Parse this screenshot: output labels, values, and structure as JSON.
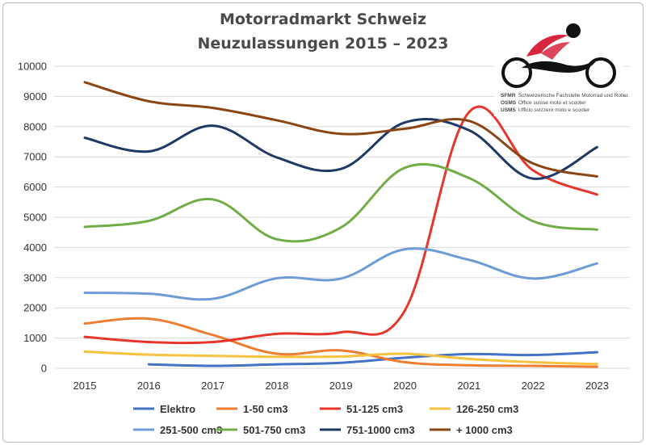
{
  "chart_data": {
    "type": "line",
    "title_lines": [
      "Motorradmarkt Schweiz",
      "Neuzulassungen 2015 – 2023"
    ],
    "x": [
      "2015",
      "2016",
      "2017",
      "2018",
      "2019",
      "2020",
      "2021",
      "2022",
      "2023"
    ],
    "ylim": [
      0,
      10000
    ],
    "yticks": [
      "0",
      "1000",
      "2000",
      "3000",
      "4000",
      "5000",
      "6000",
      "7000",
      "8000",
      "9000",
      "10000"
    ],
    "grid": true,
    "legend_position": "bottom",
    "series": [
      {
        "name": "Elektro",
        "color": "#4472C4",
        "values": [
          null,
          130,
          80,
          130,
          180,
          350,
          470,
          440,
          530
        ]
      },
      {
        "name": "1-50 cm3",
        "color": "#ED7D31",
        "values": [
          1480,
          1640,
          1100,
          480,
          590,
          200,
          100,
          80,
          50
        ]
      },
      {
        "name": "51-125 cm3",
        "color": "#E8352B",
        "values": [
          1040,
          870,
          870,
          1140,
          1190,
          1920,
          8480,
          6550,
          5750
        ]
      },
      {
        "name": "126-250 cm3",
        "color": "#F5C242",
        "values": [
          550,
          450,
          410,
          380,
          390,
          480,
          310,
          200,
          140
        ]
      },
      {
        "name": "251-500 cm3",
        "color": "#6E9BD6",
        "values": [
          2500,
          2470,
          2300,
          2980,
          2970,
          3940,
          3590,
          2970,
          3470
        ]
      },
      {
        "name": "501-750 cm3",
        "color": "#70AD47",
        "values": [
          4680,
          4880,
          5590,
          4270,
          4660,
          6640,
          6300,
          4870,
          4590
        ]
      },
      {
        "name": "751-1000 cm3",
        "color": "#1F3864",
        "values": [
          7630,
          7180,
          8030,
          6980,
          6600,
          8140,
          7880,
          6280,
          7320
        ]
      },
      {
        "name": "+ 1000 cm3",
        "color": "#8B4513",
        "values": [
          9470,
          8840,
          8620,
          8210,
          7760,
          7930,
          8190,
          6780,
          6350
        ]
      }
    ]
  },
  "logo": {
    "lines": [
      {
        "abbr": "SFMR",
        "text": "Schweizerische Fachstelle Motorrad und Roller"
      },
      {
        "abbr": "OSMS",
        "text": "Office suisse moto et scooter"
      },
      {
        "abbr": "USMS",
        "text": "Ufficio svizzero moto e scooter"
      }
    ]
  }
}
